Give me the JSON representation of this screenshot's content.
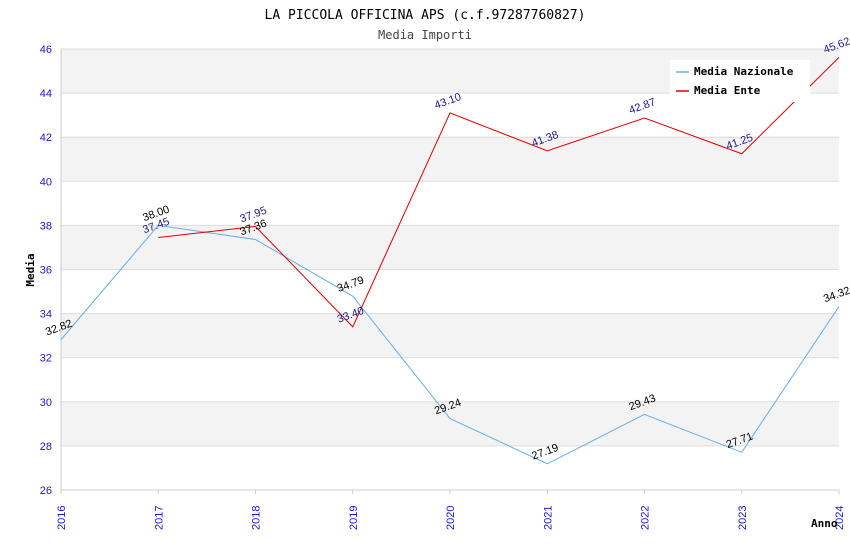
{
  "chart_data": {
    "type": "line",
    "title": "LA PICCOLA OFFICINA APS (c.f.97287760827)",
    "subtitle": "Media Importi",
    "xlabel": "Anno",
    "ylabel": "Media",
    "categories": [
      "2016",
      "2017",
      "2018",
      "2019",
      "2020",
      "2021",
      "2022",
      "2023",
      "2024"
    ],
    "ylim": [
      26,
      46
    ],
    "yticks": [
      26,
      28,
      30,
      32,
      34,
      36,
      38,
      40,
      42,
      44,
      46
    ],
    "ytick_labels": [
      "26",
      "28",
      "30",
      "32",
      "34",
      "36",
      "38",
      "40",
      "42",
      "44",
      "46"
    ],
    "legend_position": "top-right",
    "series": [
      {
        "name": "Media Nazionale",
        "color": "#6aaee8",
        "label_color": "#000000",
        "values": [
          32.82,
          38.0,
          37.36,
          34.79,
          29.24,
          27.19,
          29.43,
          27.71,
          34.32
        ],
        "labels": [
          "32.82",
          "38.00",
          "37.36",
          "34.79",
          "29.24",
          "27.19",
          "29.43",
          "27.71",
          "34.32"
        ]
      },
      {
        "name": "Media Ente",
        "color": "#e00000",
        "label_color": "#1a1a8c",
        "values": [
          null,
          37.45,
          37.95,
          33.4,
          43.1,
          41.38,
          42.87,
          41.25,
          45.62
        ],
        "labels": [
          null,
          "37.45",
          "37.95",
          "33.40",
          "43.10",
          "41.38",
          "42.87",
          "41.25",
          "45.62"
        ]
      }
    ]
  }
}
